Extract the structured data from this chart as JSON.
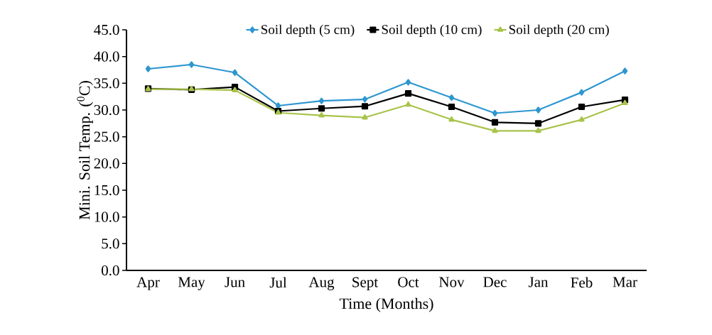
{
  "chart_data": {
    "type": "line",
    "xlabel": "Time (Months)",
    "ylabel": "Mini. Soil Temp. ($^{0}$C)",
    "categories": [
      "Apr",
      "May",
      "Jun",
      "Jul",
      "Aug",
      "Sept",
      "Oct",
      "Nov",
      "Dec",
      "Jan",
      "Feb",
      "Mar"
    ],
    "series": [
      {
        "name": "Soil depth (5 cm)",
        "color": "#2e96d0",
        "marker": "diamond",
        "values": [
          37.7,
          38.5,
          37.0,
          30.8,
          31.7,
          32.0,
          35.2,
          32.3,
          29.4,
          30.0,
          33.3,
          37.3
        ]
      },
      {
        "name": "Soil depth (10  cm)",
        "color": "#000000",
        "marker": "square",
        "values": [
          34.0,
          33.8,
          34.3,
          29.8,
          30.3,
          30.7,
          33.1,
          30.6,
          27.7,
          27.5,
          30.6,
          31.9
        ]
      },
      {
        "name": "Soil depth (20 cm)",
        "color": "#a8c34a",
        "marker": "triangle",
        "values": [
          33.9,
          33.9,
          33.7,
          29.5,
          29.0,
          28.6,
          31.0,
          28.2,
          26.1,
          26.1,
          28.2,
          31.3
        ]
      }
    ],
    "ylim": [
      0,
      45
    ],
    "yticks": [
      {
        "value": 0,
        "label": "0.0"
      },
      {
        "value": 5,
        "label": "5.0"
      },
      {
        "value": 10,
        "label": "10.0"
      },
      {
        "value": 15,
        "label": "15.0"
      },
      {
        "value": 20,
        "label": "20.0"
      },
      {
        "value": 25,
        "label": "25.0"
      },
      {
        "value": 30,
        "label": "30.0"
      },
      {
        "value": 35,
        "label": "35.0"
      },
      {
        "value": 40,
        "label": "40.0"
      },
      {
        "value": 45,
        "label": "45.0"
      }
    ],
    "grid": false,
    "legend": "top",
    "line_style": "solid"
  }
}
